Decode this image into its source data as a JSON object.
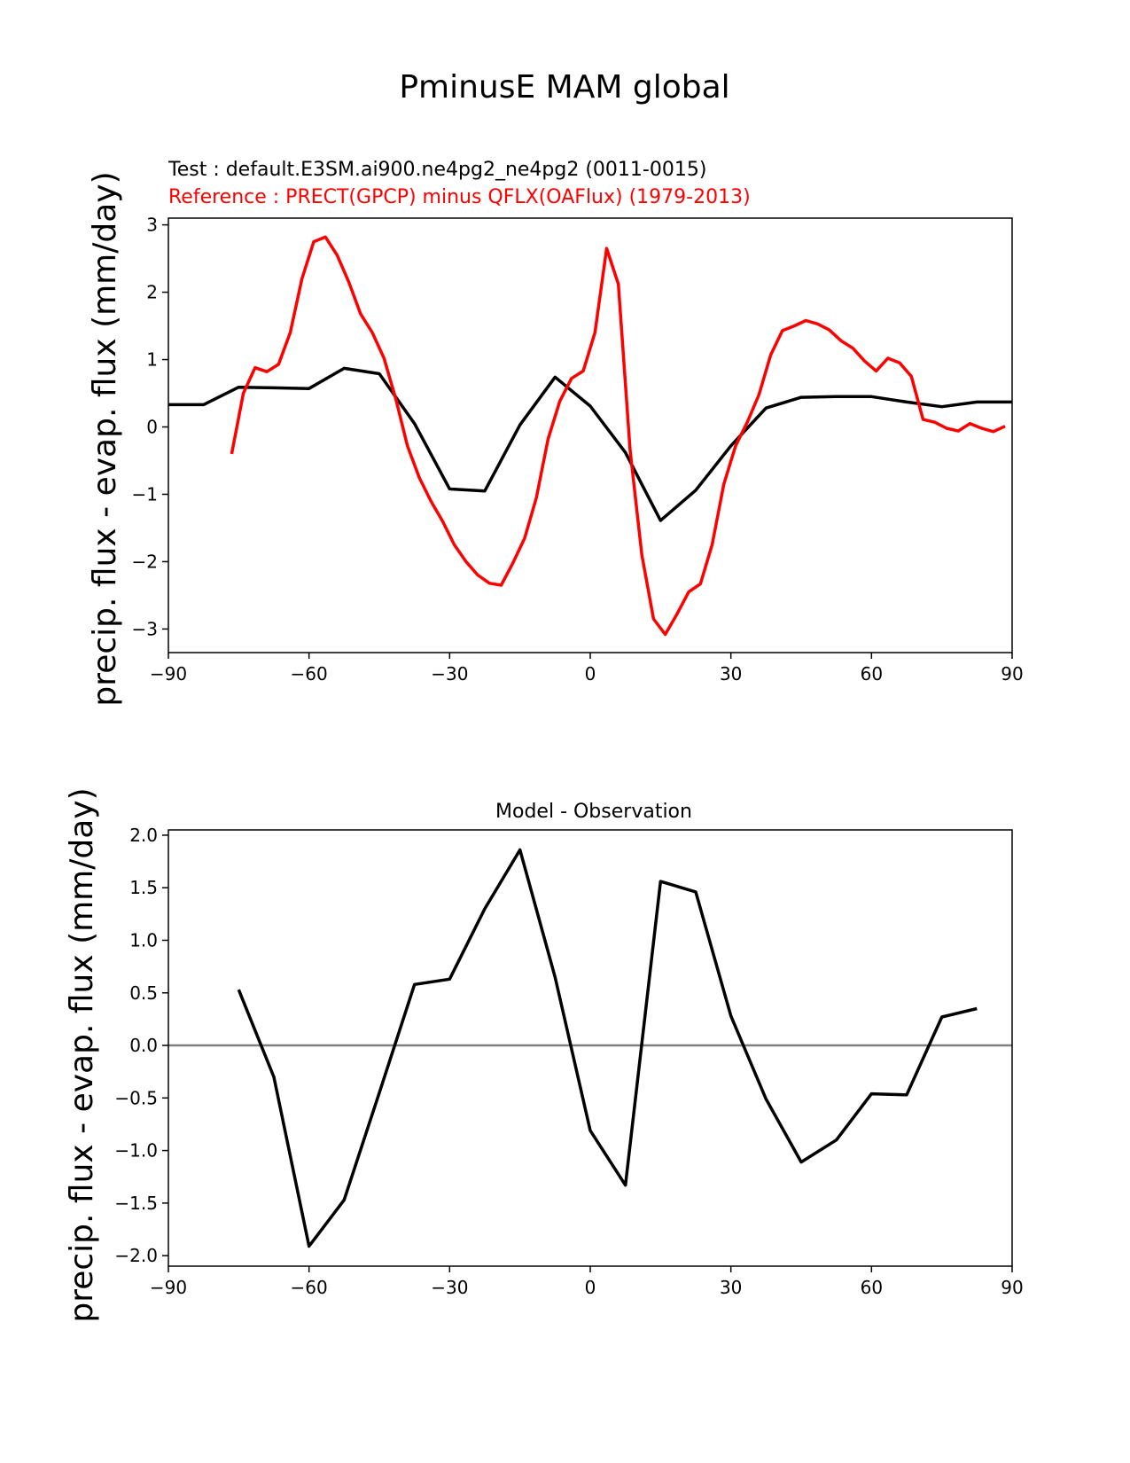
{
  "figure": {
    "title": "PminusE MAM global"
  },
  "chart_data": [
    {
      "type": "line",
      "test_title": "Test : default.E3SM.ai900.ne4pg2_ne4pg2 (0011-0015)",
      "reference_title": "Reference : PRECT(GPCP) minus QFLX(OAFlux) (1979-2013)",
      "ylabel": "precip. flux - evap. flux (mm/day)",
      "xlim": [
        -90,
        90
      ],
      "ylim": [
        -3.35,
        3.1
      ],
      "xticks": [
        -90,
        -60,
        -30,
        0,
        30,
        60,
        90
      ],
      "yticks": [
        -3,
        -2,
        -1,
        0,
        1,
        2,
        3
      ],
      "xtick_labels": [
        "−90",
        "−60",
        "−30",
        "0",
        "30",
        "60",
        "90"
      ],
      "ytick_labels": [
        "−3",
        "−2",
        "−1",
        "0",
        "1",
        "2",
        "3"
      ],
      "series": [
        {
          "color": "#000000",
          "x": [
            -90,
            -82.5,
            -75,
            -67.5,
            -60,
            -52.5,
            -45,
            -37.5,
            -30,
            -22.5,
            -15,
            -7.5,
            0,
            7.5,
            15,
            22.5,
            30,
            37.5,
            45,
            52.5,
            60,
            67.5,
            75,
            82.5,
            90
          ],
          "y": [
            0.33,
            0.33,
            0.59,
            0.58,
            0.57,
            0.87,
            0.79,
            0.05,
            -0.92,
            -0.95,
            0.03,
            0.74,
            0.31,
            -0.38,
            -1.39,
            -0.94,
            -0.28,
            0.28,
            0.44,
            0.45,
            0.45,
            0.37,
            0.3,
            0.37,
            0.37
          ]
        },
        {
          "color": "#ff0000",
          "x": [
            -76.5,
            -74,
            -71.5,
            -69,
            -66.5,
            -64,
            -61.5,
            -59,
            -56.5,
            -54,
            -51.5,
            -49,
            -46.5,
            -44,
            -41.5,
            -39,
            -36.5,
            -34,
            -31.5,
            -29,
            -26.5,
            -24,
            -21.5,
            -19,
            -16.5,
            -14,
            -11.5,
            -9,
            -6.5,
            -4,
            -1.5,
            1,
            3.5,
            6,
            8.5,
            11,
            13.5,
            16,
            18.5,
            21,
            23.5,
            26,
            28.5,
            31,
            33.5,
            36,
            38.5,
            41,
            43.5,
            46,
            48.5,
            51,
            53.5,
            56,
            58.5,
            61,
            63.5,
            66,
            68.5,
            71,
            73.5,
            76,
            78.5,
            81,
            83.5,
            86,
            88.5
          ],
          "y": [
            -0.4,
            0.5,
            0.88,
            0.82,
            0.93,
            1.4,
            2.2,
            2.75,
            2.82,
            2.55,
            2.15,
            1.68,
            1.4,
            1.02,
            0.42,
            -0.28,
            -0.75,
            -1.1,
            -1.4,
            -1.75,
            -2,
            -2.2,
            -2.32,
            -2.35,
            -2.02,
            -1.65,
            -1.05,
            -0.18,
            0.38,
            0.72,
            0.83,
            1.4,
            2.65,
            2.12,
            -0.35,
            -1.9,
            -2.85,
            -3.08,
            -2.78,
            -2.45,
            -2.33,
            -1.75,
            -0.85,
            -0.28,
            0.07,
            0.48,
            1.07,
            1.43,
            1.5,
            1.58,
            1.53,
            1.44,
            1.28,
            1.17,
            0.98,
            0.83,
            1.02,
            0.95,
            0.75,
            0.11,
            0.07,
            -0.02,
            -0.06,
            0.05,
            -0.02,
            -0.07,
            0.01
          ]
        }
      ]
    },
    {
      "type": "line",
      "title": "Model - Observation",
      "ylabel": "precip. flux - evap. flux (mm/day)",
      "xlim": [
        -90,
        90
      ],
      "ylim": [
        -2.1,
        2.05
      ],
      "xticks": [
        -90,
        -60,
        -30,
        0,
        30,
        60,
        90
      ],
      "yticks": [
        -2.0,
        -1.5,
        -1.0,
        -0.5,
        0.0,
        0.5,
        1.0,
        1.5,
        2.0
      ],
      "xtick_labels": [
        "−90",
        "−60",
        "−30",
        "0",
        "30",
        "60",
        "90"
      ],
      "ytick_labels": [
        "−2.0",
        "−1.5",
        "−1.0",
        "−0.5",
        "0.0",
        "0.5",
        "1.0",
        "1.5",
        "2.0"
      ],
      "zero_line_color": "#808080",
      "series": [
        {
          "color": "#000000",
          "x": [
            -75,
            -67.5,
            -60,
            -52.5,
            -45,
            -37.5,
            -30,
            -22.5,
            -15,
            -7.5,
            0,
            7.5,
            15,
            22.5,
            30,
            37.5,
            45,
            52.5,
            60,
            67.5,
            75,
            82.5
          ],
          "y": [
            0.53,
            -0.3,
            -1.91,
            -1.47,
            -0.45,
            0.58,
            0.63,
            1.3,
            1.86,
            0.65,
            -0.81,
            -1.33,
            1.56,
            1.46,
            0.28,
            -0.51,
            -1.11,
            -0.9,
            -0.46,
            -0.47,
            0.27,
            0.35
          ]
        }
      ]
    }
  ]
}
